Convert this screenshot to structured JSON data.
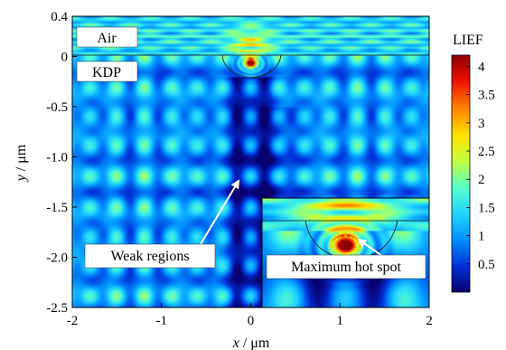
{
  "chart_data": {
    "type": "heatmap",
    "title": "",
    "xlabel": "x",
    "xunit": "μm",
    "ylabel": "y",
    "yunit": "μm",
    "xlim": [
      -2,
      2
    ],
    "ylim": [
      -2.5,
      0.4
    ],
    "xticks": [
      "-2",
      "-1",
      "0",
      "1",
      "2"
    ],
    "yticks": [
      "0.4",
      "0",
      "-0.5",
      "-1.0",
      "-1.5",
      "-2.0",
      "-2.5"
    ],
    "colorbar": {
      "label": "LIEF",
      "range": [
        0,
        4.2
      ],
      "ticks": [
        "4",
        "3.5",
        "3",
        "2.5",
        "2",
        "1.5",
        "1",
        "0.5"
      ],
      "colors": [
        "#08006e",
        "#0030d8",
        "#0090ff",
        "#22d4ff",
        "#55ffcc",
        "#c0ff40",
        "#ffe400",
        "#ff8800",
        "#ee1100",
        "#8c0000"
      ]
    },
    "regions": [
      {
        "name": "Air",
        "y_range": [
          0,
          0.4
        ]
      },
      {
        "name": "KDP",
        "y_range": [
          -2.5,
          0
        ]
      }
    ],
    "interface_y": 0,
    "defect": {
      "x_center": 0,
      "half_width": 0.35,
      "depth": 0.25
    },
    "hot_spot": {
      "x": 0,
      "y": -0.07
    },
    "annotations": [
      {
        "text": "Weak regions",
        "x": -1.1,
        "y": -2.08,
        "target": [
          -0.08,
          -1.28
        ]
      },
      {
        "text": "Maximum hot spot"
      }
    ],
    "inset": {
      "x_range": [
        0.05,
        2.0
      ],
      "y_range": [
        -2.5,
        -1.45
      ]
    }
  }
}
